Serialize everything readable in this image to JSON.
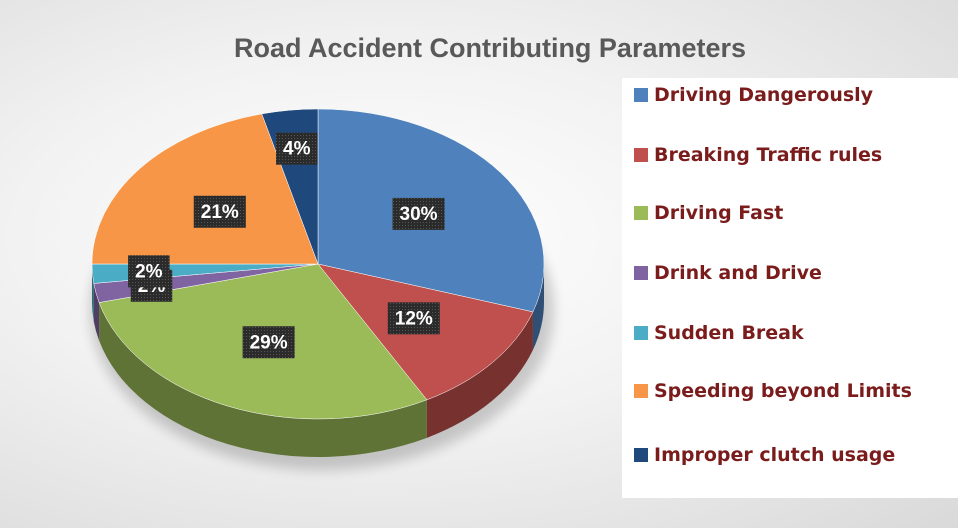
{
  "chart_data": {
    "type": "pie",
    "title": "Road Accident Contributing Parameters",
    "categories": [
      "Driving Dangerously",
      "Breaking Traffic rules",
      "Driving Fast",
      "Drink and Drive",
      "Sudden Break",
      "Speeding beyond Limits",
      "Improper clutch usage"
    ],
    "values": [
      30,
      12,
      29,
      2,
      2,
      21,
      4
    ],
    "value_labels": [
      "30%",
      "12%",
      "29%",
      "2%",
      "2%",
      "21%",
      "4%"
    ],
    "colors": [
      "#4f81bd",
      "#c0504d",
      "#9bbb59",
      "#8064a2",
      "#4bacc6",
      "#f79646",
      "#1f497d"
    ],
    "legend": "right"
  }
}
